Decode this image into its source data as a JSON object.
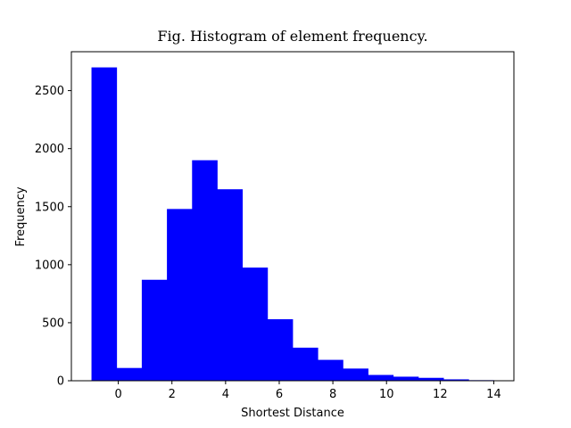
{
  "chart_data": {
    "type": "bar",
    "title": "Fig. Histogram of element frequency.",
    "xlabel": "Shortest Distance",
    "ylabel": "Frequency",
    "xlim": [
      -1.75,
      14.75
    ],
    "ylim": [
      0,
      2835
    ],
    "xticks": [
      0,
      2,
      4,
      6,
      8,
      10,
      12,
      14
    ],
    "yticks": [
      0,
      500,
      1000,
      1500,
      2000,
      2500
    ],
    "bin_edges": [
      -1,
      -0.0625,
      0.875,
      1.8125,
      2.75,
      3.6875,
      4.625,
      5.5625,
      6.5,
      7.4375,
      8.375,
      9.3125,
      10.25,
      11.1875,
      12.125,
      13.0625,
      14
    ],
    "values": [
      2700,
      110,
      870,
      1480,
      1900,
      1650,
      975,
      530,
      285,
      180,
      105,
      50,
      35,
      25,
      12,
      5
    ],
    "bar_color": "#0000ff",
    "grid": false,
    "legend": "none"
  }
}
